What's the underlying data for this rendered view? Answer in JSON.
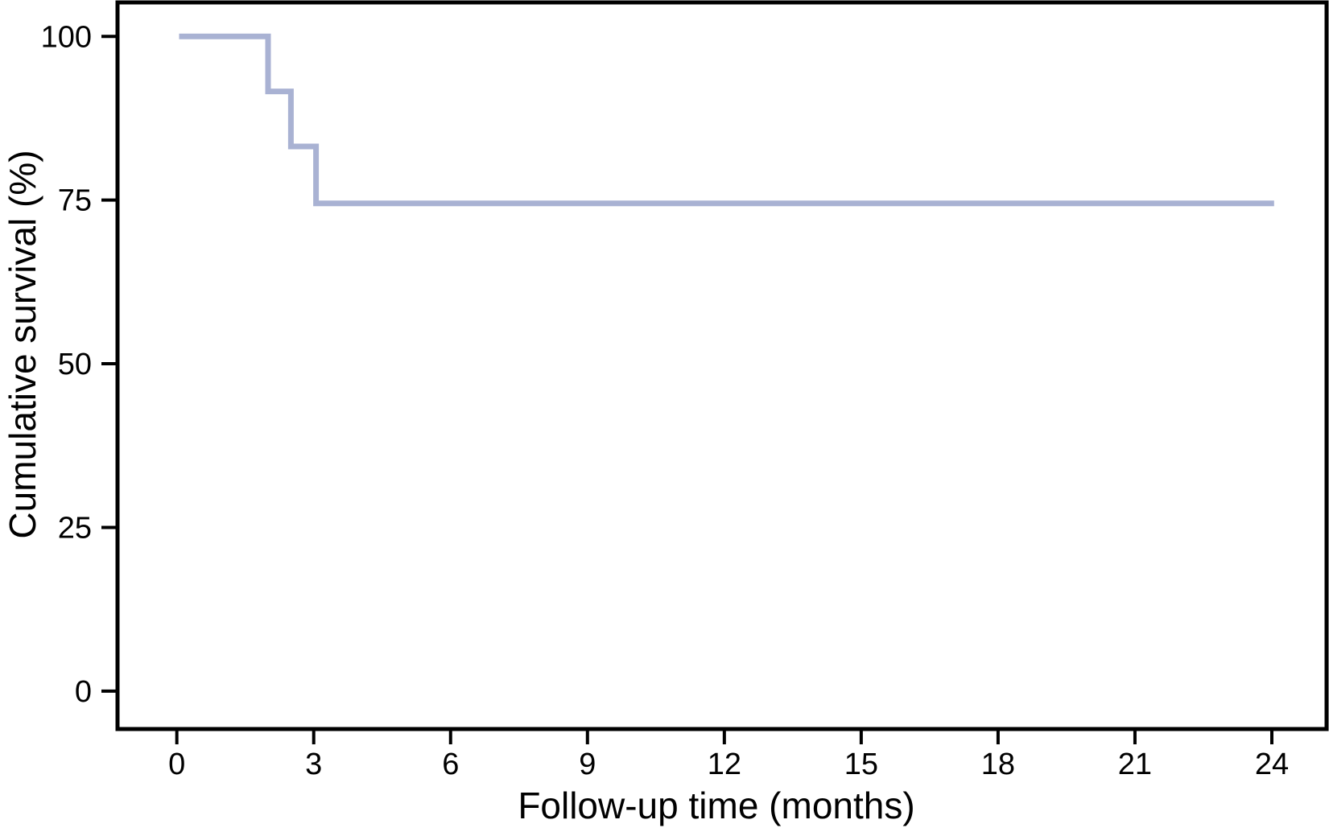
{
  "figure": {
    "background": "#ffffff",
    "frame_color": "#000000",
    "text_color": "#000000"
  },
  "chart_data": {
    "type": "line",
    "subtype": "kaplan-meier-step-curve",
    "title": "",
    "xlabel": "Follow-up time (months)",
    "ylabel": "Cumulative survival (%)",
    "x_ticks": [
      0,
      3,
      6,
      9,
      12,
      15,
      18,
      21,
      24
    ],
    "y_ticks": [
      0,
      25,
      50,
      75,
      100
    ],
    "xlim": [
      -1.3,
      25.2
    ],
    "ylim": [
      -5.8,
      105.2
    ],
    "grid": false,
    "legend": false,
    "series": [
      {
        "name": "Cumulative survival",
        "color": "#a9b2d3",
        "line_width": 7,
        "points": [
          [
            0.05,
            100
          ],
          [
            2.0,
            100
          ],
          [
            2.0,
            91.6
          ],
          [
            2.5,
            91.6
          ],
          [
            2.5,
            83.2
          ],
          [
            3.05,
            83.2
          ],
          [
            3.05,
            74.5
          ],
          [
            24.05,
            74.5
          ]
        ]
      }
    ]
  }
}
